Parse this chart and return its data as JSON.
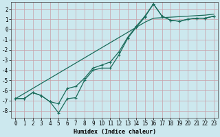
{
  "xlabel": "Humidex (Indice chaleur)",
  "background_color": "#cce8ee",
  "grid_color": "#c8a0a8",
  "line_color": "#1a6b5a",
  "x_values": [
    0,
    1,
    2,
    3,
    4,
    5,
    6,
    7,
    8,
    9,
    10,
    11,
    12,
    13,
    14,
    15,
    16,
    17,
    18,
    19,
    20,
    21,
    22,
    23
  ],
  "y_curve1": [
    -6.8,
    -6.8,
    -6.2,
    -6.5,
    -7.1,
    -8.2,
    -6.8,
    -6.7,
    -5.0,
    -4.0,
    -3.8,
    -3.8,
    -2.5,
    -0.9,
    0.2,
    1.2,
    2.5,
    1.3,
    0.9,
    0.8,
    1.0,
    1.1,
    1.1,
    1.3
  ],
  "y_curve2": [
    -6.8,
    -6.8,
    -6.2,
    -6.5,
    -7.1,
    -7.3,
    -5.8,
    -5.6,
    -4.8,
    -3.8,
    -3.5,
    -3.2,
    -2.2,
    -0.8,
    0.3,
    1.3,
    2.5,
    1.3,
    0.9,
    0.8,
    1.0,
    1.1,
    1.1,
    1.3
  ],
  "y_linear": [
    -6.8,
    -6.3,
    -5.8,
    -5.3,
    -4.8,
    -4.3,
    -3.8,
    -3.3,
    -2.8,
    -2.3,
    -1.8,
    -1.3,
    -0.8,
    -0.3,
    0.2,
    0.7,
    1.1,
    1.15,
    1.2,
    1.25,
    1.3,
    1.35,
    1.4,
    1.5
  ],
  "xlim": [
    -0.5,
    23.5
  ],
  "ylim": [
    -8.7,
    2.7
  ],
  "yticks": [
    2,
    1,
    0,
    -1,
    -2,
    -3,
    -4,
    -5,
    -6,
    -7,
    -8
  ],
  "xticks": [
    0,
    1,
    2,
    3,
    4,
    5,
    6,
    7,
    8,
    9,
    10,
    11,
    12,
    13,
    14,
    15,
    16,
    17,
    18,
    19,
    20,
    21,
    22,
    23
  ],
  "tick_fontsize": 5.5,
  "xlabel_fontsize": 6,
  "marker_size": 2.5,
  "linewidth": 0.9
}
